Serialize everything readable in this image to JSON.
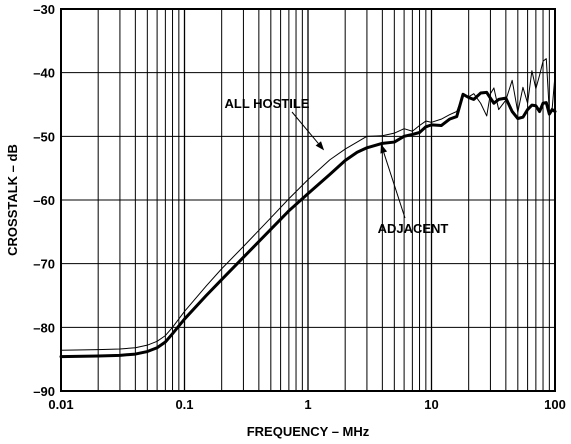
{
  "chart_data": {
    "type": "line",
    "title": "",
    "xlabel": "FREQUENCY – MHz",
    "ylabel": "CROSSTALK – dB",
    "x_scale": "log",
    "xlim": [
      0.01,
      100
    ],
    "ylim": [
      -90,
      -30
    ],
    "x_ticks": [
      0.01,
      0.1,
      1,
      10,
      100
    ],
    "x_tick_labels": [
      "0.01",
      "0.1",
      "1",
      "10",
      "100"
    ],
    "y_ticks": [
      -90,
      -80,
      -70,
      -60,
      -50,
      -40,
      -30
    ],
    "y_tick_labels": [
      "–90",
      "–80",
      "–70",
      "–60",
      "–50",
      "–40",
      "–30"
    ],
    "grid": true,
    "series": [
      {
        "name": "ALL HOSTILE",
        "line_weight": "thin",
        "x": [
          0.01,
          0.02,
          0.03,
          0.04,
          0.05,
          0.06,
          0.07,
          0.08,
          0.1,
          0.15,
          0.2,
          0.3,
          0.5,
          0.7,
          1,
          1.5,
          2,
          2.5,
          3,
          4,
          5,
          6,
          7,
          8,
          9,
          10,
          12,
          14,
          16,
          18,
          20,
          22,
          25,
          28,
          30,
          32,
          35,
          40,
          45,
          50,
          55,
          60,
          65,
          70,
          75,
          80,
          85,
          90,
          95,
          100
        ],
        "y": [
          -83.6,
          -83.5,
          -83.4,
          -83.2,
          -82.8,
          -82.2,
          -81.3,
          -80.0,
          -77.5,
          -73.5,
          -70.8,
          -67.3,
          -62.8,
          -59.8,
          -56.8,
          -53.7,
          -52.0,
          -50.9,
          -50.0,
          -49.9,
          -49.5,
          -48.8,
          -49.2,
          -48.3,
          -47.6,
          -47.8,
          -47.3,
          -46.6,
          -46.1,
          -43.5,
          -43.8,
          -43.3,
          -44.8,
          -46.8,
          -43.3,
          -42.4,
          -45.8,
          -44.3,
          -41.2,
          -46.2,
          -42.3,
          -44.8,
          -39.7,
          -42.5,
          -40.4,
          -38.2,
          -37.8,
          -46.2,
          -45.5,
          -40.4
        ]
      },
      {
        "name": "ADJACENT",
        "line_weight": "thick",
        "x": [
          0.01,
          0.02,
          0.03,
          0.04,
          0.05,
          0.06,
          0.07,
          0.08,
          0.1,
          0.15,
          0.2,
          0.3,
          0.5,
          0.7,
          1,
          1.5,
          2,
          2.5,
          3,
          4,
          5,
          6,
          7,
          8,
          9,
          10,
          12,
          14,
          16,
          18,
          20,
          22,
          25,
          28,
          30,
          32,
          35,
          40,
          45,
          50,
          55,
          60,
          65,
          70,
          75,
          80,
          85,
          90,
          95,
          100
        ],
        "y": [
          -84.6,
          -84.5,
          -84.4,
          -84.2,
          -83.8,
          -83.2,
          -82.3,
          -81.0,
          -78.7,
          -75.0,
          -72.5,
          -69.0,
          -64.6,
          -61.7,
          -59.0,
          -56.0,
          -53.8,
          -52.5,
          -51.8,
          -51.1,
          -50.9,
          -50.0,
          -49.7,
          -49.4,
          -48.5,
          -48.2,
          -48.3,
          -47.3,
          -46.9,
          -43.4,
          -43.9,
          -44.2,
          -43.2,
          -43.1,
          -44.0,
          -44.8,
          -44.2,
          -44.0,
          -46.1,
          -47.2,
          -47.0,
          -45.8,
          -45.1,
          -45.2,
          -46.1,
          -44.8,
          -44.7,
          -46.5,
          -45.8,
          -46.1
        ]
      }
    ],
    "annotations": [
      {
        "text": "ALL HOSTILE",
        "points_to": "ALL HOSTILE",
        "arrow_x": 1.35,
        "arrow_y": -52.2
      },
      {
        "text": "ADJACENT",
        "points_to": "ADJACENT",
        "arrow_x": 3.9,
        "arrow_y": -51.2
      }
    ]
  }
}
